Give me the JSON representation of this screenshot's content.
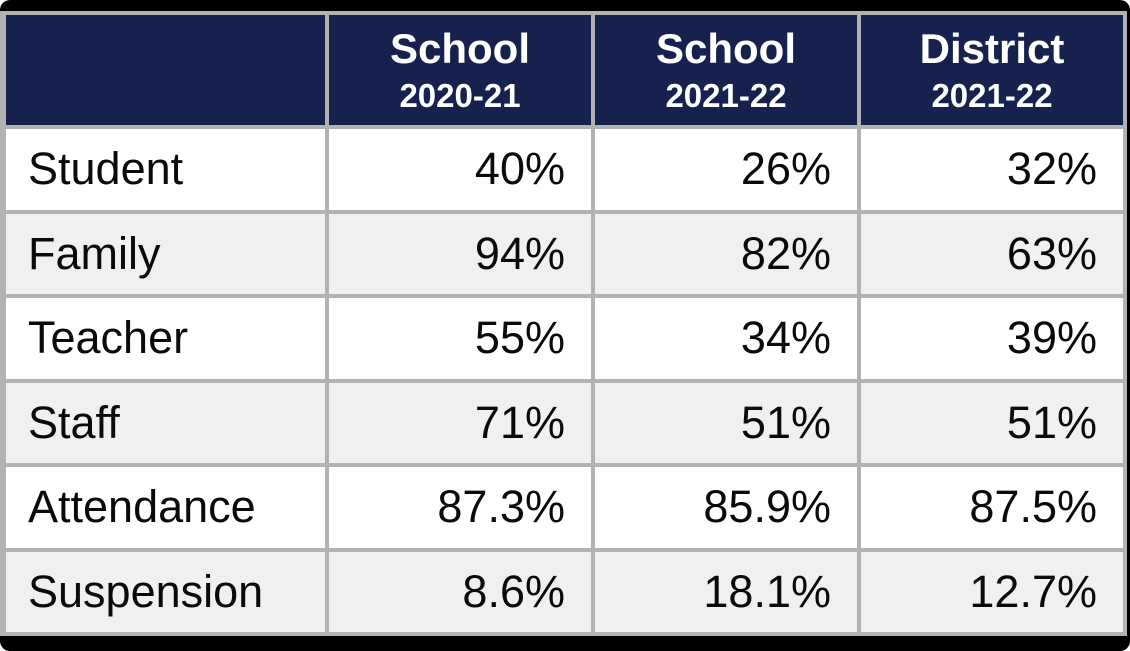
{
  "colors": {
    "frame": "#000000",
    "header_bg": "#16214d",
    "header_text": "#ffffff",
    "border": "#b2b2b2",
    "row_bg": "#ffffff",
    "row_alt_bg": "#f0f0f0",
    "cell_text": "#0a0a0a"
  },
  "table": {
    "corner_label": "",
    "columns": [
      {
        "title": "School",
        "subtitle": "2020-21"
      },
      {
        "title": "School",
        "subtitle": "2021-22"
      },
      {
        "title": "District",
        "subtitle": "2021-22"
      }
    ],
    "rows": [
      {
        "label": "Student",
        "values": [
          "40%",
          "26%",
          "32%"
        ]
      },
      {
        "label": "Family",
        "values": [
          "94%",
          "82%",
          "63%"
        ]
      },
      {
        "label": "Teacher",
        "values": [
          "55%",
          "34%",
          "39%"
        ]
      },
      {
        "label": "Staff",
        "values": [
          "71%",
          "51%",
          "51%"
        ]
      },
      {
        "label": "Attendance",
        "values": [
          "87.3%",
          "85.9%",
          "87.5%"
        ]
      },
      {
        "label": "Suspension",
        "values": [
          "8.6%",
          "18.1%",
          "12.7%"
        ]
      }
    ]
  },
  "chart_data": {
    "type": "table",
    "title": "",
    "columns": [
      "",
      "School 2020-21",
      "School 2021-22",
      "District 2021-22"
    ],
    "categories": [
      "Student",
      "Family",
      "Teacher",
      "Staff",
      "Attendance",
      "Suspension"
    ],
    "series": [
      {
        "name": "School 2020-21",
        "values": [
          40,
          94,
          55,
          71,
          87.3,
          8.6
        ]
      },
      {
        "name": "School 2021-22",
        "values": [
          26,
          82,
          34,
          51,
          85.9,
          18.1
        ]
      },
      {
        "name": "District 2021-22",
        "values": [
          32,
          63,
          39,
          51,
          87.5,
          12.7
        ]
      }
    ],
    "value_unit": "%"
  }
}
